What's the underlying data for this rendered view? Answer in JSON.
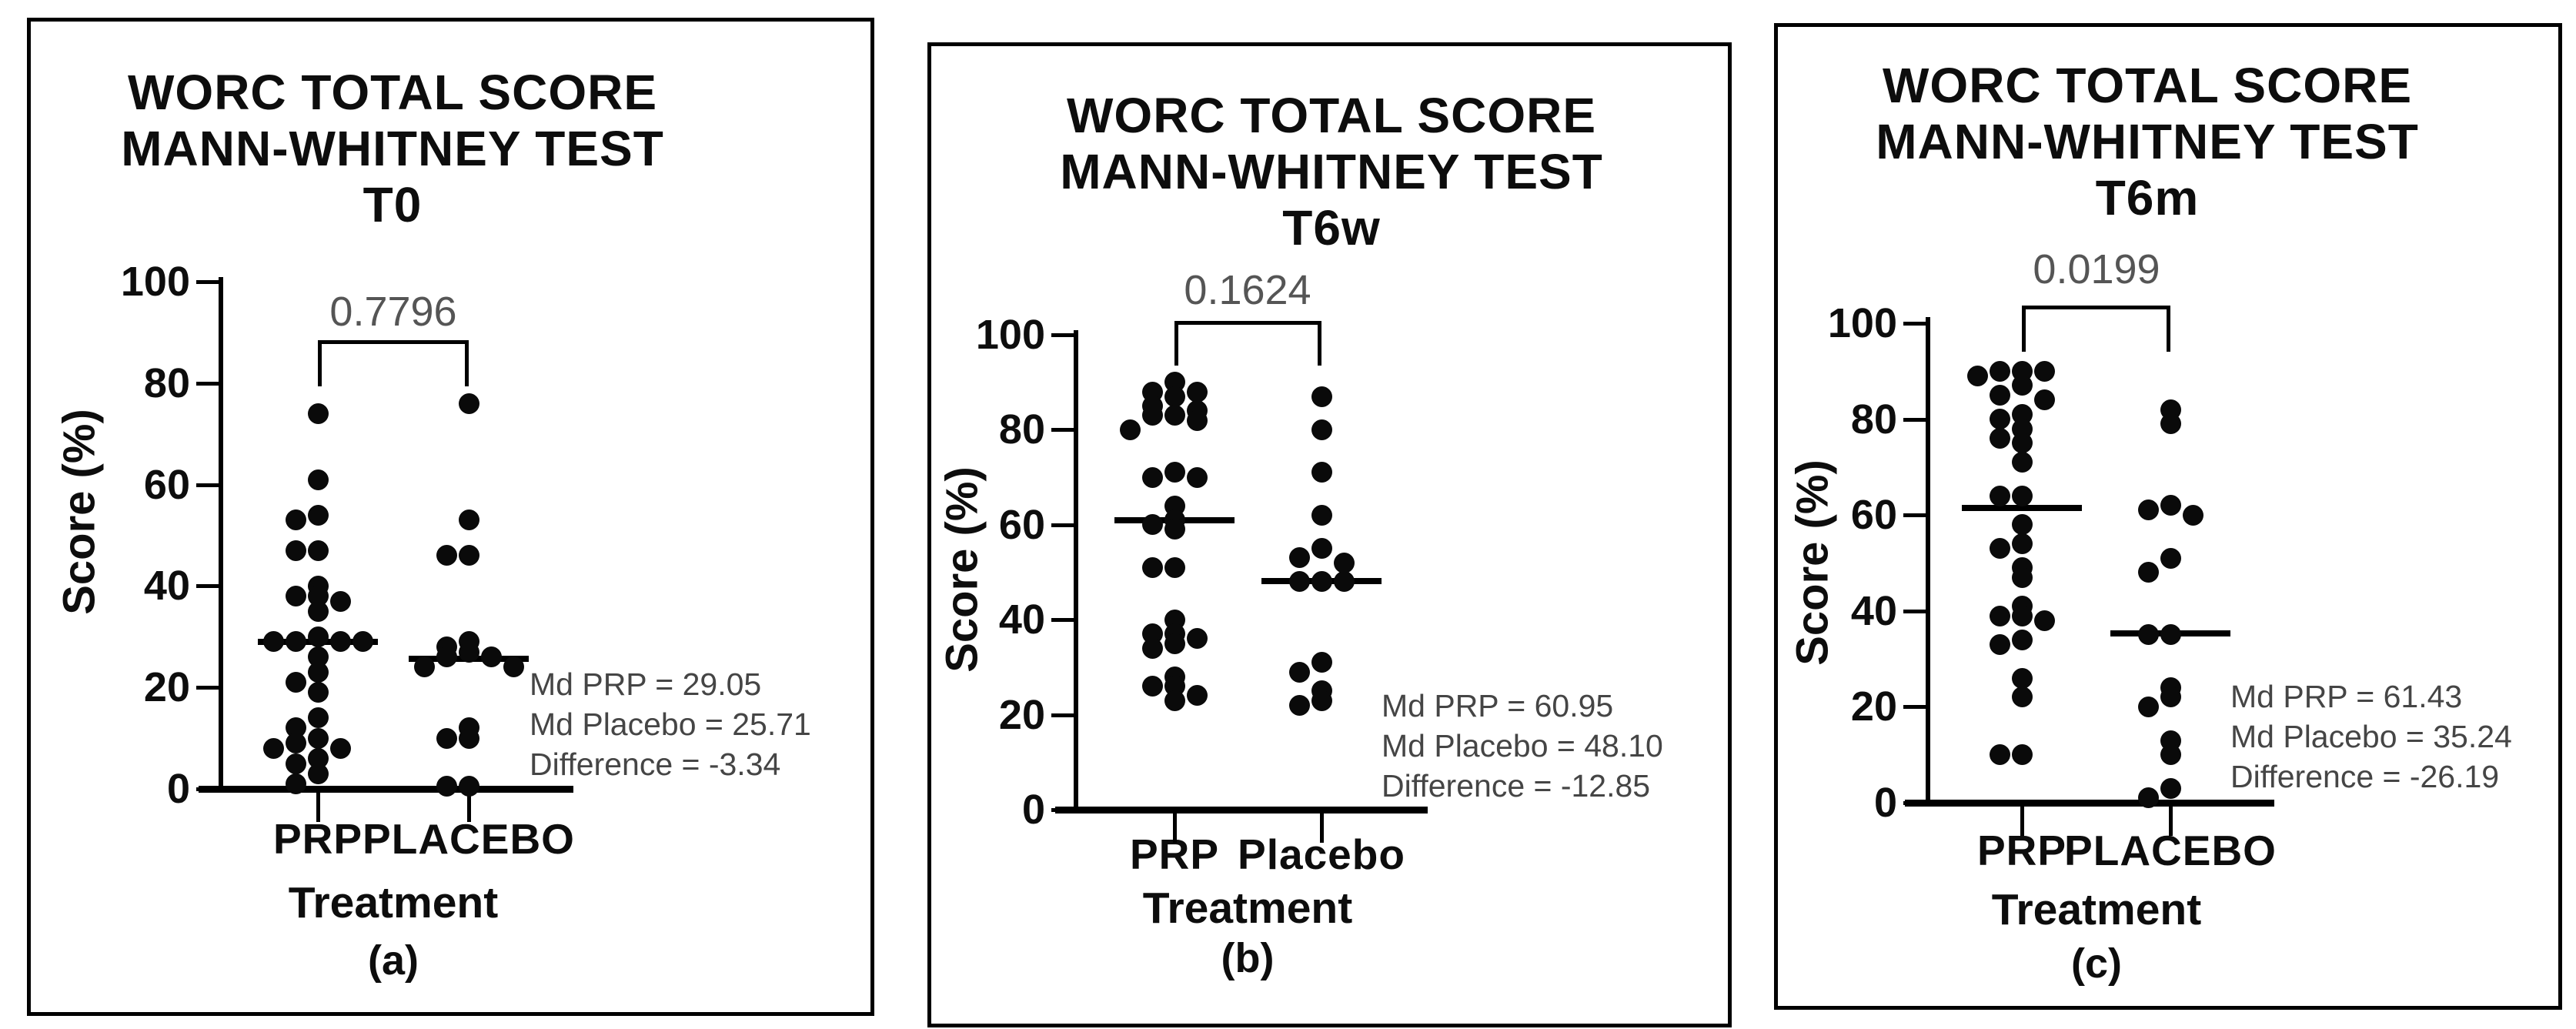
{
  "figure": {
    "background": "#ffffff",
    "panel_border_color": "#000000",
    "dot_color": "#0a0a0a",
    "text_color": "#0d0d0d",
    "muted_text_color": "#555555"
  },
  "chart_data": [
    {
      "type": "scatter",
      "title": "WORC TOTAL SCORE MANN-WHITNEY TEST T0",
      "title_lines": [
        "WORC TOTAL SCORE",
        "MANN-WHITNEY TEST",
        "T0"
      ],
      "panel_letter": "(a)",
      "p_value": "0.7796",
      "xlabel": "Treatment",
      "ylabel": "Score (%)",
      "ylim": [
        0,
        100
      ],
      "yticks": [
        0,
        20,
        40,
        60,
        80,
        100
      ],
      "categories": [
        "PRP",
        "PLACEBO"
      ],
      "series": [
        {
          "name": "PRP",
          "median": 29.05,
          "values": [
            74,
            61,
            54,
            53,
            47,
            47,
            40,
            38,
            38,
            37,
            35,
            30,
            29,
            29,
            29,
            29,
            26,
            23,
            21,
            19,
            14,
            12,
            10,
            9,
            8,
            8,
            6,
            5,
            3,
            1
          ]
        },
        {
          "name": "PLACEBO",
          "median": 25.71,
          "values": [
            76,
            53,
            46,
            46,
            29,
            28,
            27,
            26,
            26,
            24,
            24,
            12,
            10,
            10,
            0.5,
            0.5
          ]
        }
      ],
      "annotations": [
        "Md PRP = 29.05",
        "Md Placebo = 25.71",
        "Difference = -3.34"
      ]
    },
    {
      "type": "scatter",
      "title": "WORC TOTAL SCORE MANN-WHITNEY TEST T6w",
      "title_lines": [
        "WORC TOTAL SCORE",
        "MANN-WHITNEY TEST",
        "T6w"
      ],
      "panel_letter": "(b)",
      "p_value": "0.1624",
      "xlabel": "Treatment",
      "ylabel": "Score (%)",
      "ylim": [
        0,
        100
      ],
      "yticks": [
        0,
        20,
        40,
        60,
        80,
        100
      ],
      "categories": [
        "PRP",
        "Placebo"
      ],
      "series": [
        {
          "name": "PRP",
          "median": 60.95,
          "values": [
            90,
            88,
            88,
            87,
            85,
            84,
            83,
            83,
            82,
            80,
            71,
            70,
            70,
            64,
            61,
            60,
            59,
            51,
            51,
            40,
            37,
            37,
            36,
            35,
            34,
            28,
            26,
            26,
            24,
            23
          ]
        },
        {
          "name": "Placebo",
          "median": 48.1,
          "values": [
            87,
            80,
            71,
            62,
            55,
            53,
            52,
            48,
            48,
            48,
            31,
            29,
            25,
            23,
            22
          ]
        }
      ],
      "annotations": [
        "Md PRP = 60.95",
        "Md Placebo = 48.10",
        "Difference = -12.85"
      ]
    },
    {
      "type": "scatter",
      "title": "WORC TOTAL SCORE MANN-WHITNEY TEST T6m",
      "title_lines": [
        "WORC TOTAL SCORE",
        "MANN-WHITNEY TEST",
        "T6m"
      ],
      "panel_letter": "(c)",
      "p_value": "0.0199",
      "xlabel": "Treatment",
      "ylabel": "Score (%)",
      "ylim": [
        0,
        100
      ],
      "yticks": [
        0,
        20,
        40,
        60,
        80,
        100
      ],
      "categories": [
        "PRP",
        "PLACEBO"
      ],
      "series": [
        {
          "name": "PRP",
          "median": 61.43,
          "values": [
            90,
            90,
            90,
            89,
            87,
            85,
            84,
            81,
            80,
            78,
            76,
            75,
            71,
            64,
            64,
            58,
            54,
            53,
            49,
            47,
            41,
            39,
            39,
            38,
            34,
            33,
            26,
            22,
            10,
            10
          ]
        },
        {
          "name": "PLACEBO",
          "median": 35.24,
          "values": [
            82,
            79,
            62,
            61,
            60,
            51,
            48,
            35,
            35,
            24,
            22,
            20,
            13,
            10,
            3,
            1
          ]
        }
      ],
      "annotations": [
        "Md PRP = 61.43",
        "Md Placebo = 35.24",
        "Difference = -26.19"
      ]
    }
  ]
}
